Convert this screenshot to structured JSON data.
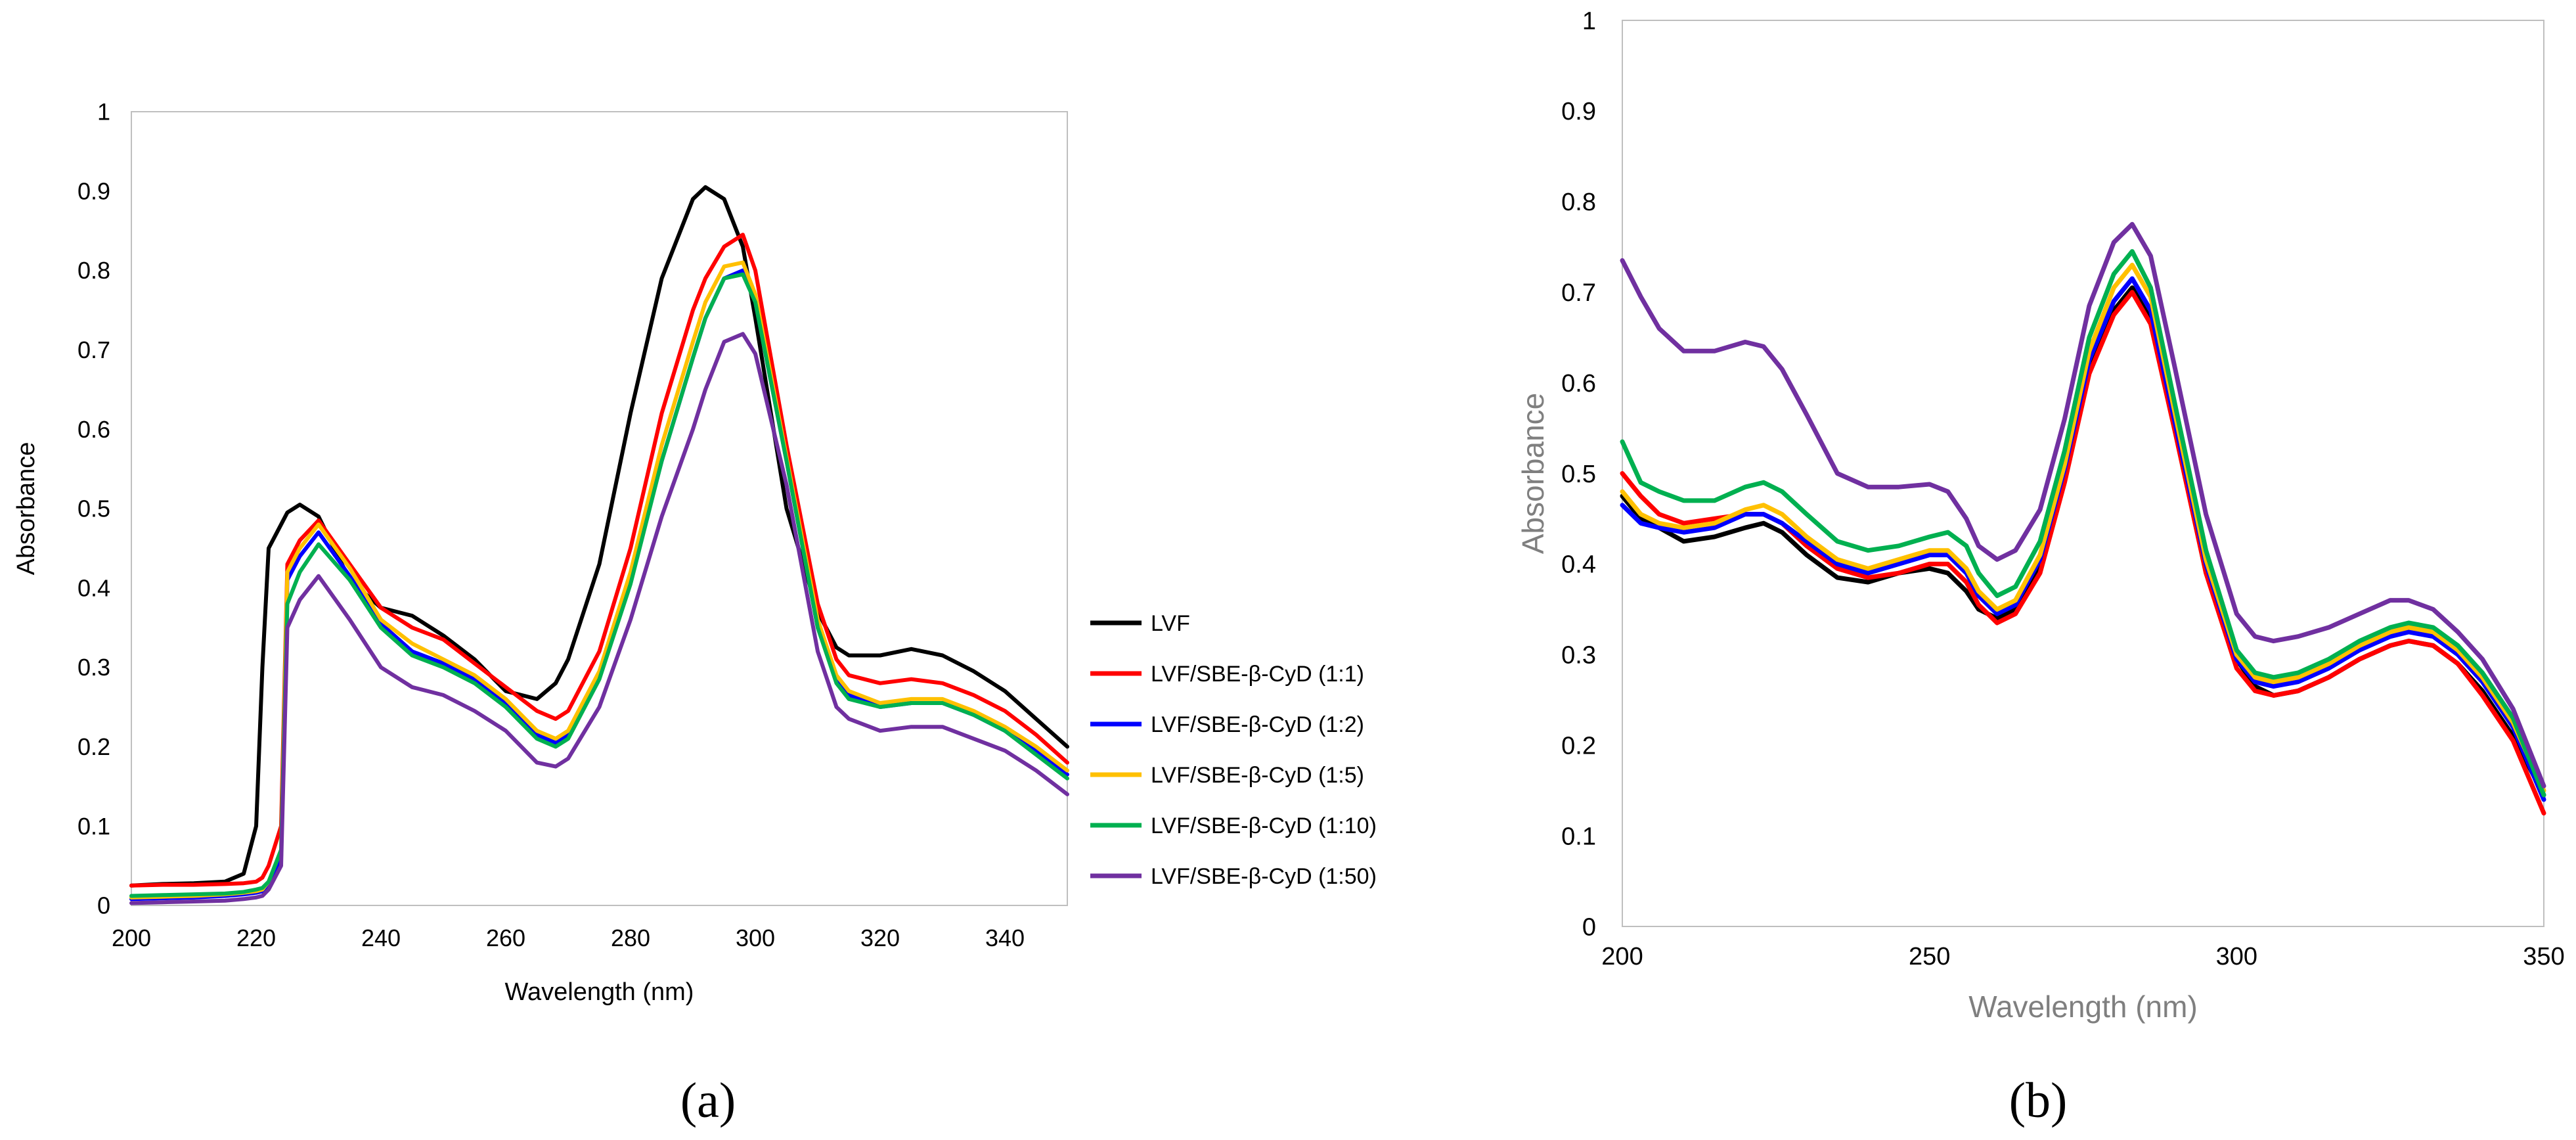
{
  "chart_data": [
    {
      "panel": "(a)",
      "type": "line",
      "xlabel": "Wavelength (nm)",
      "ylabel": "Absorbance",
      "xlim": [
        200,
        350
      ],
      "ylim": [
        0,
        1
      ],
      "xticks": [
        200,
        220,
        240,
        260,
        280,
        300,
        320,
        340
      ],
      "yticks": [
        0,
        0.1,
        0.2,
        0.3,
        0.4,
        0.5,
        0.6,
        0.7,
        0.8,
        0.9,
        1
      ],
      "ytick_labels": [
        "0",
        "0.1",
        "0.2",
        "0.3",
        "0.4",
        "0.5",
        "0.6",
        "0.7",
        "0.8",
        "0.9",
        "1"
      ],
      "legend_position": "right",
      "x": [
        200,
        205,
        210,
        215,
        218,
        220,
        221,
        222,
        224,
        225,
        227,
        230,
        235,
        240,
        245,
        250,
        255,
        260,
        265,
        268,
        270,
        275,
        280,
        285,
        290,
        292,
        295,
        298,
        300,
        305,
        310,
        313,
        315,
        320,
        325,
        330,
        335,
        340,
        345,
        350
      ],
      "series": [
        {
          "name": "LVF",
          "color": "#000000",
          "values": [
            0.025,
            0.027,
            0.028,
            0.03,
            0.04,
            0.1,
            0.3,
            0.45,
            0.48,
            0.495,
            0.505,
            0.49,
            0.41,
            0.375,
            0.365,
            0.34,
            0.31,
            0.27,
            0.26,
            0.28,
            0.31,
            0.43,
            0.62,
            0.79,
            0.89,
            0.905,
            0.89,
            0.83,
            0.74,
            0.5,
            0.37,
            0.325,
            0.315,
            0.315,
            0.323,
            0.315,
            0.295,
            0.27,
            0.235,
            0.2
          ]
        },
        {
          "name": "LVF/SBE-β-CyD (1:1)",
          "color": "#ff0000",
          "values": [
            0.025,
            0.026,
            0.026,
            0.027,
            0.028,
            0.03,
            0.035,
            0.05,
            0.1,
            0.43,
            0.46,
            0.485,
            0.43,
            0.375,
            0.35,
            0.335,
            0.305,
            0.275,
            0.245,
            0.235,
            0.245,
            0.32,
            0.45,
            0.62,
            0.75,
            0.79,
            0.83,
            0.845,
            0.8,
            0.58,
            0.38,
            0.31,
            0.29,
            0.28,
            0.285,
            0.28,
            0.265,
            0.245,
            0.215,
            0.18
          ]
        },
        {
          "name": "LVF/SBE-β-CyD (1:2)",
          "color": "#0000ff",
          "values": [
            0.008,
            0.009,
            0.01,
            0.012,
            0.014,
            0.016,
            0.018,
            0.025,
            0.06,
            0.41,
            0.44,
            0.47,
            0.415,
            0.355,
            0.32,
            0.305,
            0.285,
            0.255,
            0.215,
            0.205,
            0.215,
            0.29,
            0.41,
            0.56,
            0.69,
            0.74,
            0.79,
            0.8,
            0.76,
            0.56,
            0.35,
            0.285,
            0.265,
            0.25,
            0.255,
            0.255,
            0.24,
            0.22,
            0.195,
            0.165
          ]
        },
        {
          "name": "LVF/SBE-β-CyD (1:5)",
          "color": "#ffc000",
          "values": [
            0.01,
            0.011,
            0.012,
            0.014,
            0.016,
            0.018,
            0.02,
            0.03,
            0.07,
            0.42,
            0.45,
            0.48,
            0.425,
            0.36,
            0.33,
            0.31,
            0.29,
            0.26,
            0.22,
            0.21,
            0.22,
            0.295,
            0.42,
            0.58,
            0.71,
            0.76,
            0.805,
            0.81,
            0.77,
            0.565,
            0.36,
            0.29,
            0.27,
            0.255,
            0.26,
            0.26,
            0.245,
            0.225,
            0.2,
            0.17
          ]
        },
        {
          "name": "LVF/SBE-β-CyD (1:10)",
          "color": "#00b050",
          "values": [
            0.012,
            0.013,
            0.014,
            0.015,
            0.017,
            0.02,
            0.022,
            0.03,
            0.07,
            0.38,
            0.42,
            0.455,
            0.41,
            0.35,
            0.315,
            0.3,
            0.28,
            0.25,
            0.21,
            0.2,
            0.21,
            0.285,
            0.405,
            0.56,
            0.69,
            0.74,
            0.79,
            0.795,
            0.76,
            0.56,
            0.35,
            0.28,
            0.26,
            0.25,
            0.255,
            0.255,
            0.24,
            0.22,
            0.19,
            0.16
          ]
        },
        {
          "name": "LVF/SBE-β-CyD (1:50)",
          "color": "#7030a0",
          "values": [
            0.003,
            0.004,
            0.005,
            0.006,
            0.008,
            0.01,
            0.012,
            0.02,
            0.05,
            0.35,
            0.385,
            0.415,
            0.36,
            0.3,
            0.275,
            0.265,
            0.245,
            0.22,
            0.18,
            0.175,
            0.185,
            0.25,
            0.36,
            0.49,
            0.6,
            0.65,
            0.71,
            0.72,
            0.695,
            0.53,
            0.32,
            0.25,
            0.235,
            0.22,
            0.225,
            0.225,
            0.21,
            0.195,
            0.17,
            0.14
          ]
        }
      ]
    },
    {
      "panel": "(b)",
      "type": "line",
      "xlabel": "Wavelength (nm)",
      "ylabel": "Absorbance",
      "xlim": [
        200,
        350
      ],
      "ylim": [
        0,
        1
      ],
      "xticks": [
        200,
        250,
        300,
        350
      ],
      "yticks": [
        0,
        0.1,
        0.2,
        0.3,
        0.4,
        0.5,
        0.6,
        0.7,
        0.8,
        0.9,
        1
      ],
      "ytick_labels": [
        "0",
        "0.1",
        "0.2",
        "0.3",
        "0.4",
        "0.5",
        "0.6",
        "0.7",
        "0.8",
        "0.9",
        "1"
      ],
      "x": [
        200,
        203,
        206,
        210,
        215,
        220,
        223,
        226,
        230,
        235,
        240,
        245,
        250,
        253,
        256,
        258,
        261,
        264,
        268,
        272,
        276,
        280,
        283,
        286,
        290,
        295,
        300,
        303,
        306,
        310,
        315,
        320,
        325,
        328,
        332,
        336,
        340,
        345,
        350
      ],
      "series": [
        {
          "name": "LVF",
          "color": "#000000",
          "values": [
            0.475,
            0.45,
            0.44,
            0.425,
            0.43,
            0.44,
            0.445,
            0.435,
            0.41,
            0.385,
            0.38,
            0.39,
            0.395,
            0.39,
            0.37,
            0.35,
            0.34,
            0.35,
            0.4,
            0.5,
            0.62,
            0.68,
            0.705,
            0.67,
            0.55,
            0.4,
            0.295,
            0.265,
            0.255,
            0.26,
            0.275,
            0.295,
            0.31,
            0.315,
            0.31,
            0.29,
            0.26,
            0.21,
            0.145
          ]
        },
        {
          "name": "LVF/SBE-β-CyD (1:1)",
          "color": "#ff0000",
          "values": [
            0.5,
            0.475,
            0.455,
            0.445,
            0.45,
            0.455,
            0.455,
            0.445,
            0.42,
            0.395,
            0.385,
            0.39,
            0.4,
            0.4,
            0.38,
            0.355,
            0.335,
            0.345,
            0.39,
            0.49,
            0.61,
            0.675,
            0.7,
            0.665,
            0.545,
            0.39,
            0.285,
            0.26,
            0.255,
            0.26,
            0.275,
            0.295,
            0.31,
            0.315,
            0.31,
            0.29,
            0.255,
            0.205,
            0.125
          ]
        },
        {
          "name": "LVF/SBE-β-CyD (1:2)",
          "color": "#0000ff",
          "values": [
            0.465,
            0.445,
            0.44,
            0.435,
            0.44,
            0.455,
            0.455,
            0.445,
            0.425,
            0.4,
            0.39,
            0.4,
            0.41,
            0.41,
            0.39,
            0.365,
            0.345,
            0.355,
            0.405,
            0.505,
            0.625,
            0.69,
            0.715,
            0.68,
            0.555,
            0.4,
            0.295,
            0.27,
            0.265,
            0.27,
            0.285,
            0.305,
            0.32,
            0.325,
            0.32,
            0.3,
            0.27,
            0.22,
            0.14
          ]
        },
        {
          "name": "LVF/SBE-β-CyD (1:5)",
          "color": "#ffc000",
          "values": [
            0.48,
            0.455,
            0.445,
            0.44,
            0.445,
            0.46,
            0.465,
            0.455,
            0.43,
            0.405,
            0.395,
            0.405,
            0.415,
            0.415,
            0.395,
            0.37,
            0.35,
            0.36,
            0.41,
            0.51,
            0.635,
            0.705,
            0.73,
            0.695,
            0.565,
            0.405,
            0.3,
            0.275,
            0.27,
            0.275,
            0.29,
            0.31,
            0.325,
            0.33,
            0.325,
            0.305,
            0.275,
            0.225,
            0.15
          ]
        },
        {
          "name": "LVF/SBE-β-CyD (1:10)",
          "color": "#00b050",
          "values": [
            0.535,
            0.49,
            0.48,
            0.47,
            0.47,
            0.485,
            0.49,
            0.48,
            0.455,
            0.425,
            0.415,
            0.42,
            0.43,
            0.435,
            0.42,
            0.39,
            0.365,
            0.375,
            0.425,
            0.525,
            0.65,
            0.72,
            0.745,
            0.705,
            0.575,
            0.415,
            0.305,
            0.28,
            0.275,
            0.28,
            0.295,
            0.315,
            0.33,
            0.335,
            0.33,
            0.31,
            0.28,
            0.23,
            0.145
          ]
        },
        {
          "name": "LVF/SBE-β-CyD (1:50)",
          "color": "#7030a0",
          "values": [
            0.735,
            0.695,
            0.66,
            0.635,
            0.635,
            0.645,
            0.64,
            0.615,
            0.565,
            0.5,
            0.485,
            0.485,
            0.488,
            0.48,
            0.45,
            0.42,
            0.405,
            0.415,
            0.46,
            0.56,
            0.685,
            0.755,
            0.775,
            0.74,
            0.615,
            0.455,
            0.345,
            0.32,
            0.315,
            0.32,
            0.33,
            0.345,
            0.36,
            0.36,
            0.35,
            0.325,
            0.295,
            0.24,
            0.155
          ]
        }
      ]
    }
  ]
}
